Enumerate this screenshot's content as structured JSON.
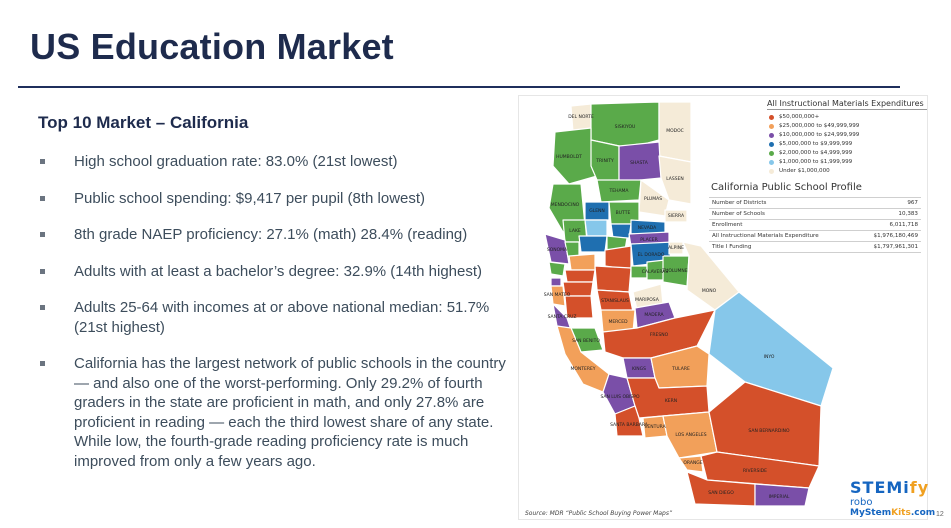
{
  "slide": {
    "title": "US Education Market",
    "subtitle": "Top 10 Market – California",
    "bullets": [
      "High school graduation rate: 83.0% (21st lowest)",
      "Public school spending: $9,417 per pupil (8th lowest)",
      "8th grade NAEP proficiency: 27.1% (math) 28.4% (reading)",
      "Adults with at least a bachelor’s degree: 32.9% (14th highest)",
      "Adults 25-64 with incomes at or above national median: 51.7% (21st highest)",
      "California has the largest network of public schools in the country — and also one of the worst-performing. Only 29.2% of fourth graders in the state are proficient in math, and only 27.8% are proficient in reading — each the third lowest share of any state. While low, the fourth-grade reading proficiency rate is much improved from only a few years ago."
    ],
    "page_number": "12"
  },
  "map": {
    "legend_title": "All Instructional Materials Expenditures",
    "legend": [
      {
        "label": "$50,000,000+",
        "color": "#d4502a"
      },
      {
        "label": "$25,000,000 to $49,999,999",
        "color": "#f2a05a"
      },
      {
        "label": "$10,000,000 to $24,999,999",
        "color": "#7a4fa8"
      },
      {
        "label": "$5,000,000 to $9,999,999",
        "color": "#1f6fb0"
      },
      {
        "label": "$2,000,000 to $4,999,999",
        "color": "#5aaa4a"
      },
      {
        "label": "$1,000,000 to $1,999,999",
        "color": "#86c7ea"
      },
      {
        "label": "Under $1,000,000",
        "color": "#f5ebd8"
      }
    ],
    "profile_title": "California Public School Profile",
    "profile": [
      {
        "label": "Number of Districts",
        "value": "967"
      },
      {
        "label": "Number of Schools",
        "value": "10,383"
      },
      {
        "label": "Enrollment",
        "value": "6,011,718"
      },
      {
        "label": "All Instructional Materials Expenditure",
        "value": "$1,976,180,469"
      },
      {
        "label": "Title I Funding",
        "value": "$1,797,961,301"
      }
    ],
    "county_labels": [
      "DEL NORTE",
      "SISKIYOU",
      "MODOC",
      "HUMBOLDT",
      "TRINITY",
      "SHASTA",
      "LASSEN",
      "MENDOCINO",
      "TEHAMA",
      "PLUMAS",
      "GLENN",
      "BUTTE",
      "SIERRA",
      "LAKE",
      "NEVADA",
      "PLACER",
      "SONOMA",
      "EL DORADO",
      "MONO",
      "SAN MATEO",
      "SANTA CRUZ",
      "MERCED",
      "MARIPOSA",
      "SAN BENITO",
      "FRESNO",
      "INYO",
      "MONTEREY",
      "KINGS",
      "TULARE",
      "SAN LUIS OBISPO",
      "KERN",
      "SANTA BARBARA",
      "VENTURA",
      "LOS ANGELES",
      "SAN BERNARDINO",
      "ORANGE",
      "RIVERSIDE",
      "SAN DIEGO",
      "IMPERIAL",
      "TUOLUMNE",
      "STANISLAUS",
      "MADERA",
      "CALAVERAS",
      "ALPINE"
    ],
    "source": "Source: MDR “Public School Buying Power Maps”"
  },
  "logo": {
    "stem": "STEMi",
    "fy": "fy",
    "robo": "robo",
    "site_main": "MyStem",
    "site_k": "Kits",
    "site_end": ".com"
  }
}
